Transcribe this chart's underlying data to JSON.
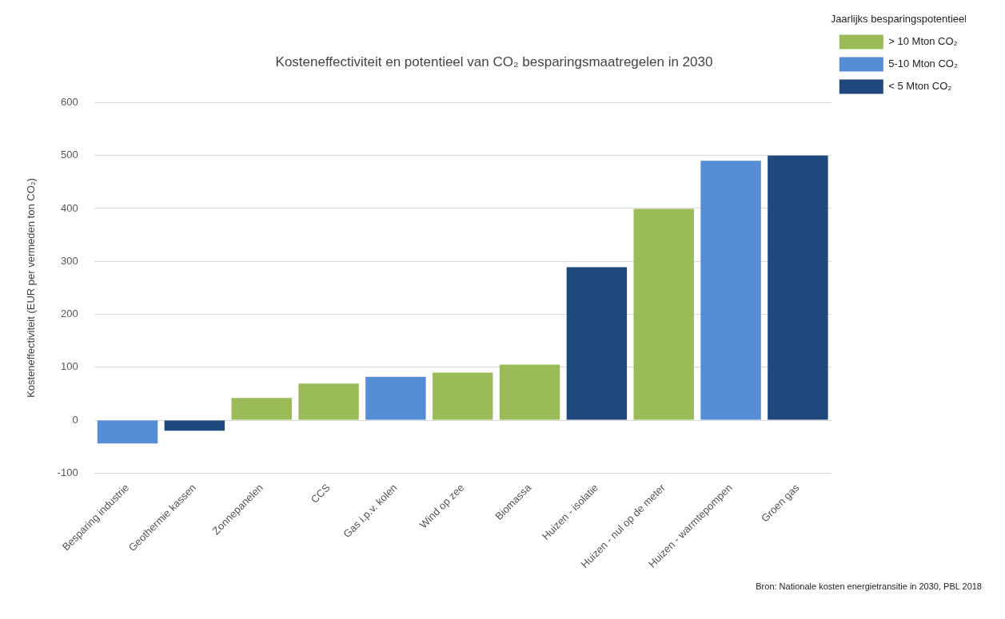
{
  "chart_data": {
    "type": "bar",
    "title": "Kosteneffectiviteit en potentieel van CO₂ besparingsmaatregelen in 2030",
    "ylabel": "Kosteneffectiviteit (EUR per vermeden ton CO₂)",
    "legend_title": "Jaarlijks besparingspotentieel",
    "categories": [
      "Besparing industrie",
      "Geothermie kassen",
      "Zonnepanelen",
      "CCS",
      "Gas i.p.v. kolen",
      "Wind op zee",
      "Biomassa",
      "Huizen - isolatie",
      "Huizen - nul op de meter",
      "Huizen - warmtepompen",
      "Groen gas"
    ],
    "series": [
      {
        "name": "> 10 Mton CO₂",
        "color": "#9bbb59",
        "values": [
          null,
          null,
          42,
          69,
          null,
          90,
          105,
          null,
          399,
          null,
          null
        ]
      },
      {
        "name": "5-10 Mton CO₂",
        "color": "#558ed5",
        "values": [
          -44,
          null,
          null,
          null,
          82,
          null,
          null,
          null,
          null,
          490,
          null
        ]
      },
      {
        "name": "< 5 Mton CO₂",
        "color": "#1f497d",
        "values": [
          null,
          -20,
          null,
          null,
          null,
          null,
          null,
          289,
          null,
          null,
          500
        ]
      }
    ],
    "ylim": [
      -100,
      600
    ],
    "yticks": [
      -100,
      0,
      100,
      200,
      300,
      400,
      500,
      600
    ],
    "grid": "y",
    "legend": "top right",
    "annotations": [
      "Bron: Nationale kosten energietransitie in 2030, PBL 2018"
    ]
  }
}
